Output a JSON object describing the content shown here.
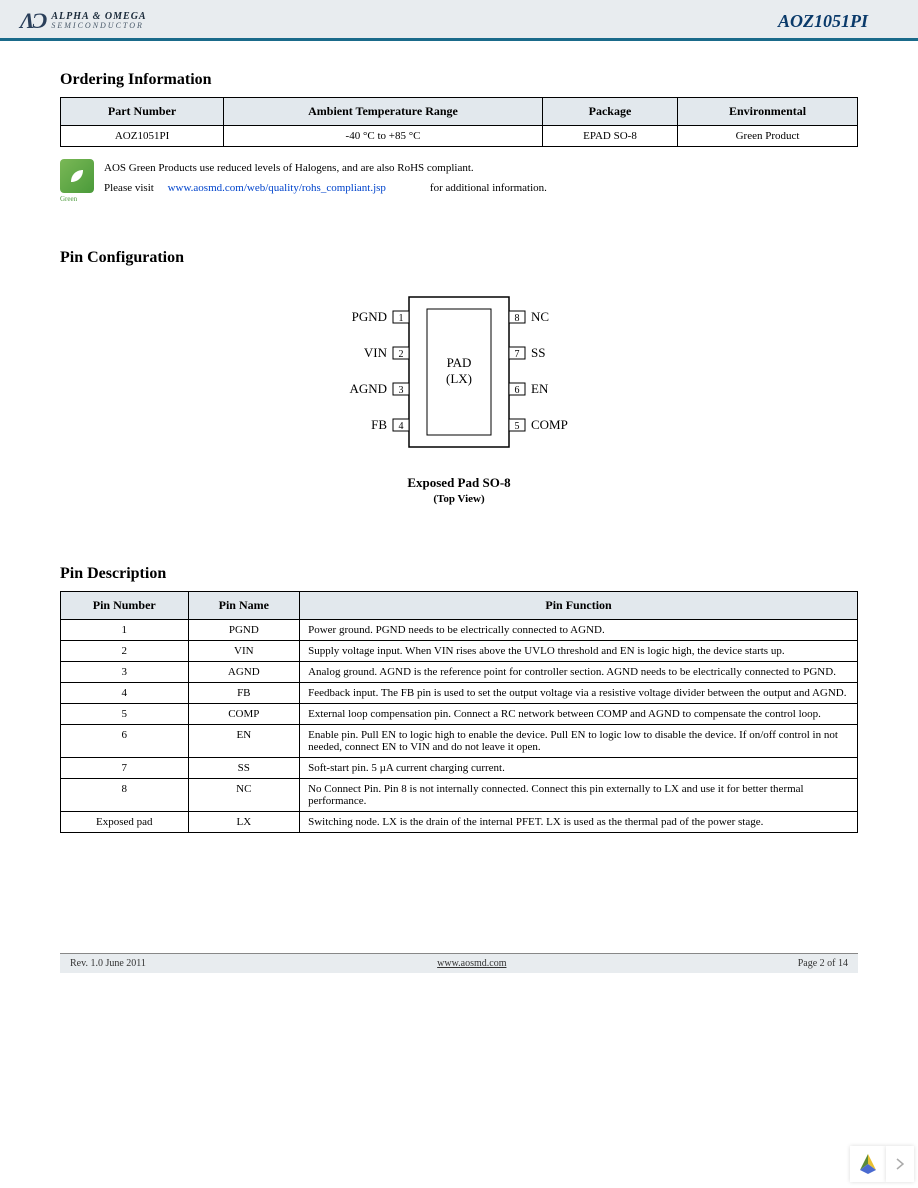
{
  "header": {
    "logo_top": "ALPHA & OMEGA",
    "logo_bot": "SEMICONDUCTOR",
    "part_number": "AOZ1051PI"
  },
  "ordering": {
    "title": "Ordering Information",
    "columns": [
      "Part Number",
      "Ambient Temperature Range",
      "Package",
      "Environmental"
    ],
    "row": {
      "pn": "AOZ1051PI",
      "temp": "-40 °C to +85 °C",
      "pkg": "EPAD SO-8",
      "env": "Green Product"
    },
    "green_line1": "AOS Green Products use reduced levels of Halogens, and are also RoHS compliant.",
    "green_line2a": "Please visit",
    "green_url": "www.aosmd.com/web/quality/rohs_compliant.jsp",
    "green_line2b": "for additional information."
  },
  "pinconfig": {
    "title": "Pin Configuration",
    "pad_label1": "PAD",
    "pad_label2": "(LX)",
    "left_pins": [
      {
        "num": "1",
        "label": "PGND"
      },
      {
        "num": "2",
        "label": "VIN"
      },
      {
        "num": "3",
        "label": "AGND"
      },
      {
        "num": "4",
        "label": "FB"
      }
    ],
    "right_pins": [
      {
        "num": "8",
        "label": "NC"
      },
      {
        "num": "7",
        "label": "SS"
      },
      {
        "num": "6",
        "label": "EN"
      },
      {
        "num": "5",
        "label": "COMP"
      }
    ],
    "caption": "Exposed Pad SO-8",
    "subcaption": "(Top View)"
  },
  "pindesc": {
    "title": "Pin Description",
    "columns": [
      "Pin Number",
      "Pin Name",
      "Pin Function"
    ],
    "rows": [
      {
        "num": "1",
        "name": "PGND",
        "func": "Power ground. PGND needs to be electrically connected to AGND."
      },
      {
        "num": "2",
        "name": "VIN",
        "func": "Supply voltage input. When VIN rises above the UVLO threshold and EN is logic high, the device starts up."
      },
      {
        "num": "3",
        "name": "AGND",
        "func": "Analog ground. AGND is the reference point for controller section. AGND needs to be electrically connected to PGND."
      },
      {
        "num": "4",
        "name": "FB",
        "func": "Feedback input. The FB pin is used to set the output voltage via a resistive voltage divider between the output and AGND."
      },
      {
        "num": "5",
        "name": "COMP",
        "func": "External loop compensation pin. Connect a RC network between COMP and AGND to compensate the control loop."
      },
      {
        "num": "6",
        "name": "EN",
        "func": "Enable pin. Pull EN to logic high to enable the device. Pull EN to logic low to disable the device. If on/off control in not needed, connect EN to VIN and do not leave it open."
      },
      {
        "num": "7",
        "name": "SS",
        "func": "Soft-start pin. 5 µA current charging current."
      },
      {
        "num": "8",
        "name": "NC",
        "func": "No Connect Pin. Pin 8 is not internally connected. Connect this pin externally to LX and use it for better thermal performance."
      },
      {
        "num": "Exposed pad",
        "name": "LX",
        "func": "Switching node. LX is the drain of the internal PFET. LX is used as the thermal pad of the power stage."
      }
    ]
  },
  "footer": {
    "rev": "Rev. 1.0 June 2011",
    "url": "www.aosmd.com",
    "page": "Page 2 of 14"
  },
  "colors": {
    "header_bg": "#e8ecef",
    "rule": "#1a6a8a",
    "th_bg": "#e2e8ed",
    "link": "#0044cc"
  }
}
